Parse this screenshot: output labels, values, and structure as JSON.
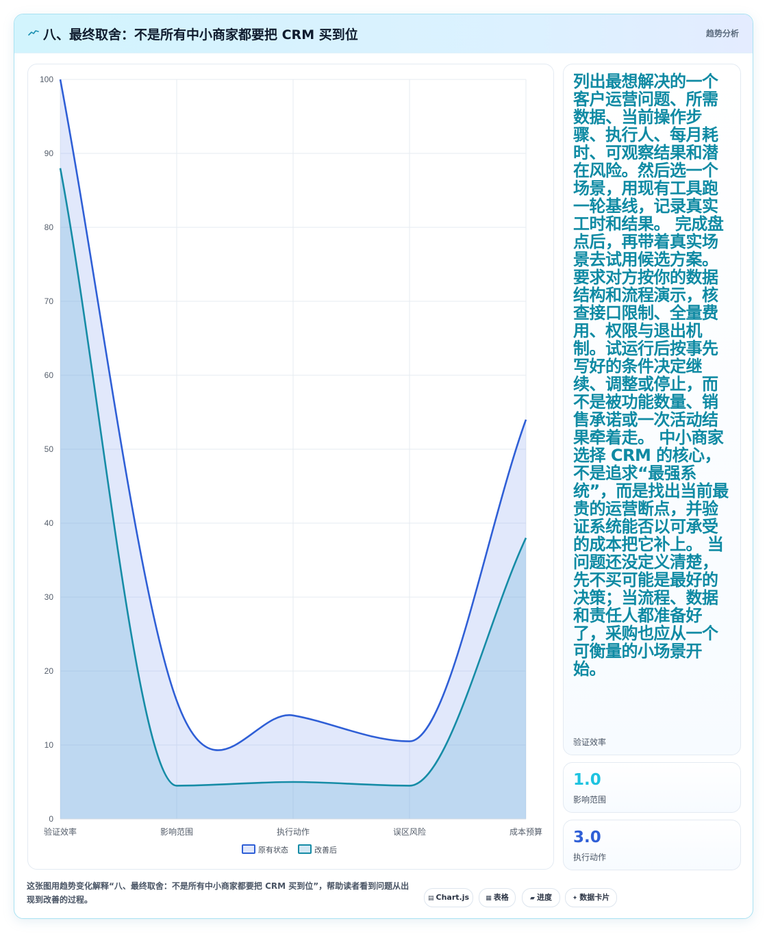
{
  "header": {
    "title": "八、最终取舍：不是所有中小商家都要把 CRM 买到位",
    "tag": "趋势分析",
    "icon": "sparkline-icon"
  },
  "chart_data": {
    "type": "line",
    "categories": [
      "验证效率",
      "影响范围",
      "执行动作",
      "误区风险",
      "成本预算"
    ],
    "series": [
      {
        "name": "原有状态",
        "values": [
          100,
          16,
          14,
          10.5,
          54
        ],
        "color": "#2f5fd6"
      },
      {
        "name": "改善后",
        "values": [
          88,
          4.5,
          5,
          4.5,
          38
        ],
        "color": "#168ca6"
      }
    ],
    "ylim": [
      0,
      100
    ],
    "yticks": [
      0,
      10,
      20,
      30,
      40,
      50,
      60,
      70,
      80,
      90,
      100
    ],
    "grid": true,
    "legend": "bottom",
    "fill": true
  },
  "side": {
    "description": "列出最想解决的一个客户运营问题、所需数据、当前操作步骤、执行人、每月耗时、可观察结果和潜在风险。然后选一个场景，用现有工具跑一轮基线，记录真实工时和结果。 完成盘点后，再带着真实场景去试用候选方案。要求对方按你的数据结构和流程演示，核查接口限制、全量费用、权限与退出机制。试运行后按事先写好的条件决定继续、调整或停止，而不是被功能数量、销售承诺或一次活动结果牵着走。 中小商家选择 CRM 的核心，不是追求“最强系统”，而是找出当前最贵的运营断点，并验证系统能否以可承受的成本把它补上。 当问题还没定义清楚，先不买可能是最好的决策；当流程、数据和责任人都准备好了，采购也应从一个可衡量的小场景开始。",
    "description_label": "验证效率",
    "metrics": [
      {
        "value": "1.0",
        "label": "影响范围",
        "color": "#1ec3e0"
      },
      {
        "value": "3.0",
        "label": "执行动作",
        "color": "#2f5fd6"
      }
    ]
  },
  "footer": {
    "note": "这张图用趋势变化解释“八、最终取舍：不是所有中小商家都要把 CRM 买到位”，帮助读者看到问题从出现到改善的过程。",
    "pills": [
      {
        "glyph": "▤",
        "label": "Chart.js"
      },
      {
        "glyph": "▦",
        "label": "表格"
      },
      {
        "glyph": "▰",
        "label": "进度"
      },
      {
        "glyph": "✦",
        "label": "数据卡片"
      }
    ]
  }
}
